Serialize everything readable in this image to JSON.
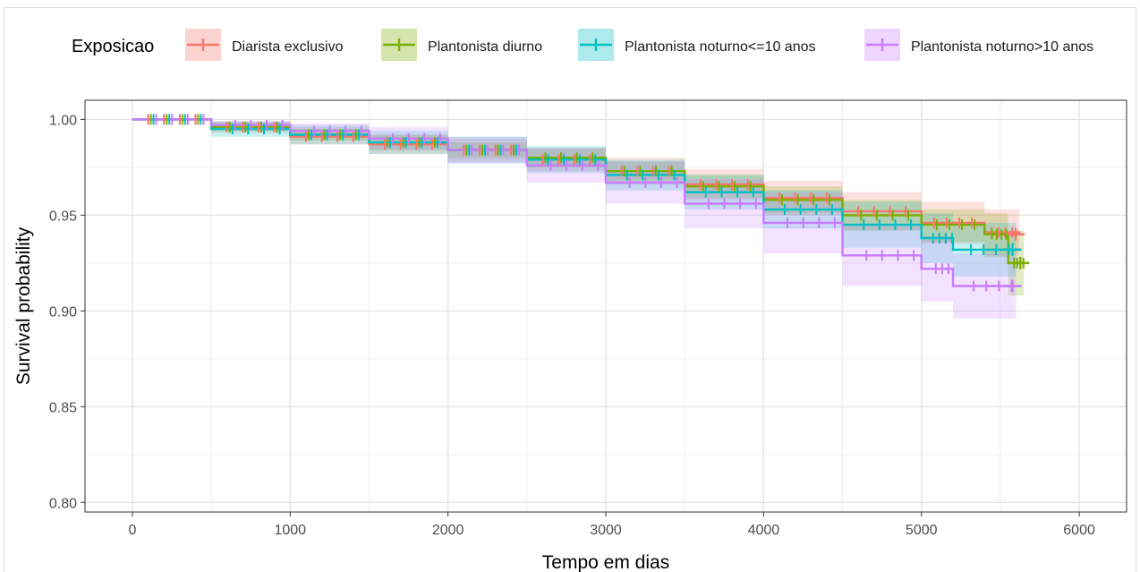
{
  "chart_data": {
    "type": "line",
    "title": "",
    "xlabel": "Tempo em dias",
    "ylabel": "Survival probability",
    "xlim": [
      -300,
      6300
    ],
    "ylim": [
      0.795,
      1.01
    ],
    "x_ticks": [
      0,
      1000,
      2000,
      3000,
      4000,
      5000,
      6000
    ],
    "x_tick_labels": [
      "0",
      "1000",
      "2000",
      "3000",
      "4000",
      "5000",
      "6000"
    ],
    "y_ticks": [
      0.8,
      0.85,
      0.9,
      0.95,
      1.0
    ],
    "y_tick_labels": [
      "0.80",
      "0.85",
      "0.90",
      "0.95",
      "1.00"
    ],
    "grid": true,
    "legend": {
      "title": "Exposicao",
      "position": "top"
    },
    "series": [
      {
        "name": "Diarista exclusivo",
        "color": "#F8766D",
        "x": [
          0,
          500,
          1000,
          1500,
          2000,
          2500,
          3000,
          3500,
          4000,
          4500,
          5000,
          5400,
          5620
        ],
        "values": [
          1.0,
          0.996,
          0.991,
          0.987,
          0.984,
          0.979,
          0.973,
          0.966,
          0.959,
          0.952,
          0.946,
          0.941,
          0.94
        ],
        "lower": [
          1.0,
          0.993,
          0.987,
          0.982,
          0.978,
          0.973,
          0.966,
          0.958,
          0.95,
          0.942,
          0.935,
          0.929,
          0.928
        ],
        "upper": [
          1.0,
          0.999,
          0.996,
          0.992,
          0.99,
          0.985,
          0.98,
          0.974,
          0.968,
          0.962,
          0.957,
          0.953,
          0.952
        ]
      },
      {
        "name": "Plantonista diurno",
        "color": "#7CAE00",
        "x": [
          0,
          500,
          1000,
          1500,
          2000,
          2500,
          3000,
          3500,
          4000,
          4500,
          5000,
          5400,
          5550,
          5650
        ],
        "values": [
          1.0,
          0.996,
          0.992,
          0.988,
          0.984,
          0.98,
          0.973,
          0.965,
          0.958,
          0.95,
          0.945,
          0.94,
          0.925,
          0.925
        ],
        "lower": [
          1.0,
          0.994,
          0.989,
          0.984,
          0.98,
          0.975,
          0.968,
          0.959,
          0.951,
          0.942,
          0.936,
          0.928,
          0.908,
          0.908
        ],
        "upper": [
          1.0,
          0.998,
          0.995,
          0.992,
          0.988,
          0.985,
          0.978,
          0.971,
          0.965,
          0.958,
          0.953,
          0.951,
          0.942,
          0.942
        ]
      },
      {
        "name": "Plantonista noturno<=10 anos",
        "color": "#00BFC4",
        "x": [
          0,
          500,
          1000,
          1500,
          2000,
          2500,
          3000,
          3500,
          4000,
          4500,
          5000,
          5200,
          5600
        ],
        "values": [
          1.0,
          0.995,
          0.992,
          0.988,
          0.984,
          0.979,
          0.971,
          0.962,
          0.953,
          0.945,
          0.938,
          0.932,
          0.932
        ],
        "lower": [
          1.0,
          0.991,
          0.987,
          0.982,
          0.977,
          0.972,
          0.963,
          0.953,
          0.943,
          0.933,
          0.925,
          0.918,
          0.918
        ],
        "upper": [
          1.0,
          0.999,
          0.997,
          0.994,
          0.991,
          0.986,
          0.979,
          0.971,
          0.963,
          0.957,
          0.951,
          0.946,
          0.946
        ]
      },
      {
        "name": "Plantonista noturno>10 anos",
        "color": "#C77CFF",
        "x": [
          0,
          500,
          1000,
          1500,
          2000,
          2500,
          3000,
          3500,
          4000,
          4500,
          5000,
          5200,
          5600
        ],
        "values": [
          1.0,
          0.997,
          0.994,
          0.99,
          0.984,
          0.976,
          0.967,
          0.956,
          0.946,
          0.929,
          0.922,
          0.913,
          0.913
        ],
        "lower": [
          1.0,
          0.995,
          0.99,
          0.984,
          0.977,
          0.967,
          0.956,
          0.943,
          0.93,
          0.913,
          0.905,
          0.896,
          0.896
        ],
        "upper": [
          1.0,
          0.999,
          0.998,
          0.996,
          0.991,
          0.985,
          0.978,
          0.969,
          0.962,
          0.945,
          0.939,
          0.93,
          0.93
        ]
      }
    ]
  }
}
